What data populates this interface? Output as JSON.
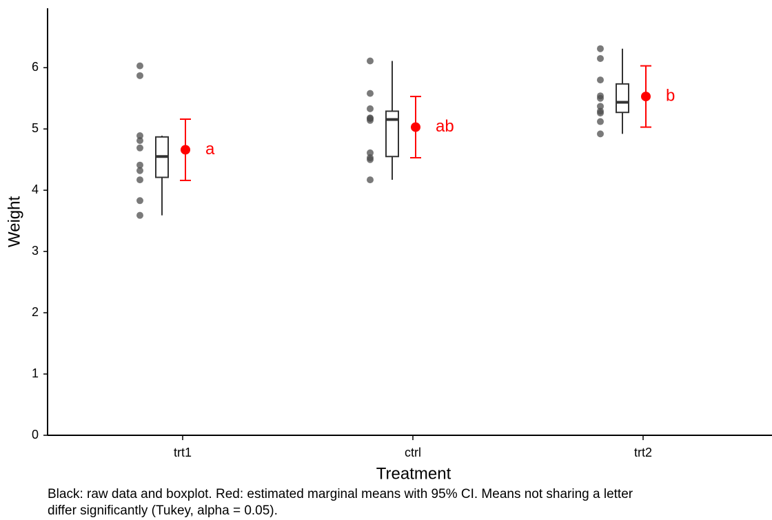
{
  "chart_data": {
    "type": "box",
    "x_label": "Treatment",
    "y_label": "Weight",
    "caption": [
      "Black: raw data and boxplot. Red: estimated marginal means with 95% CI. Means not sharing a letter",
      "differ significantly (Tukey, alpha = 0.05)."
    ],
    "categories": [
      "trt1",
      "ctrl",
      "trt2"
    ],
    "points": [
      [
        4.81,
        4.17,
        4.41,
        3.59,
        5.87,
        3.83,
        6.03,
        4.89,
        4.32,
        4.69
      ],
      [
        4.17,
        5.58,
        5.18,
        6.11,
        4.5,
        4.61,
        5.17,
        4.53,
        5.33,
        5.14
      ],
      [
        6.31,
        5.12,
        5.54,
        5.5,
        5.37,
        5.29,
        4.92,
        6.15,
        5.8,
        5.26
      ]
    ],
    "boxes": [
      {
        "min": 3.59,
        "q1": 4.21,
        "median": 4.55,
        "q3": 4.87,
        "max": 4.89
      },
      {
        "min": 4.17,
        "q1": 4.55,
        "median": 5.155,
        "q3": 5.29,
        "max": 6.11
      },
      {
        "min": 4.92,
        "q1": 5.27,
        "median": 5.435,
        "q3": 5.735,
        "max": 6.31
      }
    ],
    "means": [
      4.66,
      5.03,
      5.53
    ],
    "ci_lower": [
      4.16,
      4.53,
      5.03
    ],
    "ci_upper": [
      5.16,
      5.53,
      6.03
    ],
    "letters": [
      "a",
      "ab",
      "b"
    ],
    "point_color": "#4d4d4d",
    "mean_color": "#ff0000",
    "ylim": [
      0,
      6.97
    ],
    "yticks": [
      0,
      1,
      2,
      3,
      4,
      5,
      6
    ]
  }
}
